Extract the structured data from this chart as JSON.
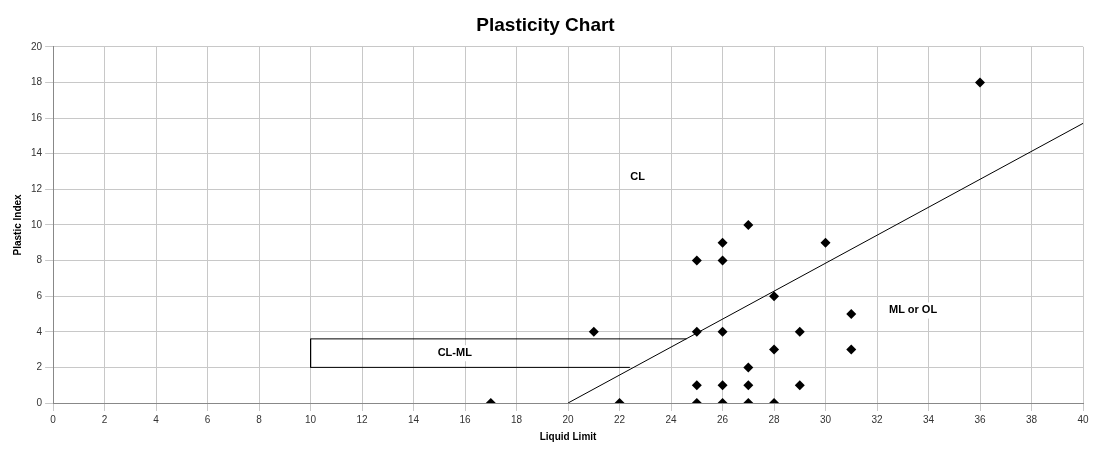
{
  "chart_data": {
    "type": "scatter",
    "title": "Plasticity Chart",
    "xlabel": "Liquid Limit",
    "ylabel": "Plastic Index",
    "xlim": [
      0,
      40
    ],
    "xticks": [
      0,
      2,
      4,
      6,
      8,
      10,
      12,
      14,
      16,
      18,
      20,
      22,
      24,
      26,
      28,
      30,
      32,
      34,
      36,
      38,
      40
    ],
    "ylim": [
      0,
      20
    ],
    "yticks": [
      0,
      2,
      4,
      6,
      8,
      10,
      12,
      14,
      16,
      18,
      20
    ],
    "grid": true,
    "legend": false,
    "series": [
      {
        "type": "scatter",
        "color": "#000000",
        "marker": "diamond",
        "x": [
          17,
          22,
          21,
          25,
          25,
          25,
          25,
          26,
          26,
          26,
          26,
          26,
          27,
          27,
          27,
          27,
          28,
          28,
          28,
          29,
          29,
          30,
          31,
          31,
          36
        ],
        "values": [
          0,
          0,
          4,
          8,
          4,
          1,
          0,
          9,
          8,
          4,
          1,
          0,
          10,
          2,
          1,
          0,
          6,
          3,
          0,
          4,
          1,
          9,
          5,
          3,
          18
        ]
      },
      {
        "type": "line",
        "color": "#000000",
        "marker": "none",
        "line_style": "solid",
        "x": [
          20,
          40
        ],
        "values": [
          0,
          15.7
        ]
      },
      {
        "type": "line",
        "color": "#000000",
        "marker": "none",
        "line_style": "solid",
        "x": [
          24.6,
          10,
          10,
          22.4
        ],
        "values": [
          3.6,
          3.6,
          2,
          2
        ]
      }
    ],
    "annotations": [
      {
        "text": "CL",
        "x": 22.7,
        "y": 12.7
      },
      {
        "text": "CL-ML",
        "x": 15.6,
        "y": 2.8
      },
      "ML or OL"
    ]
  }
}
